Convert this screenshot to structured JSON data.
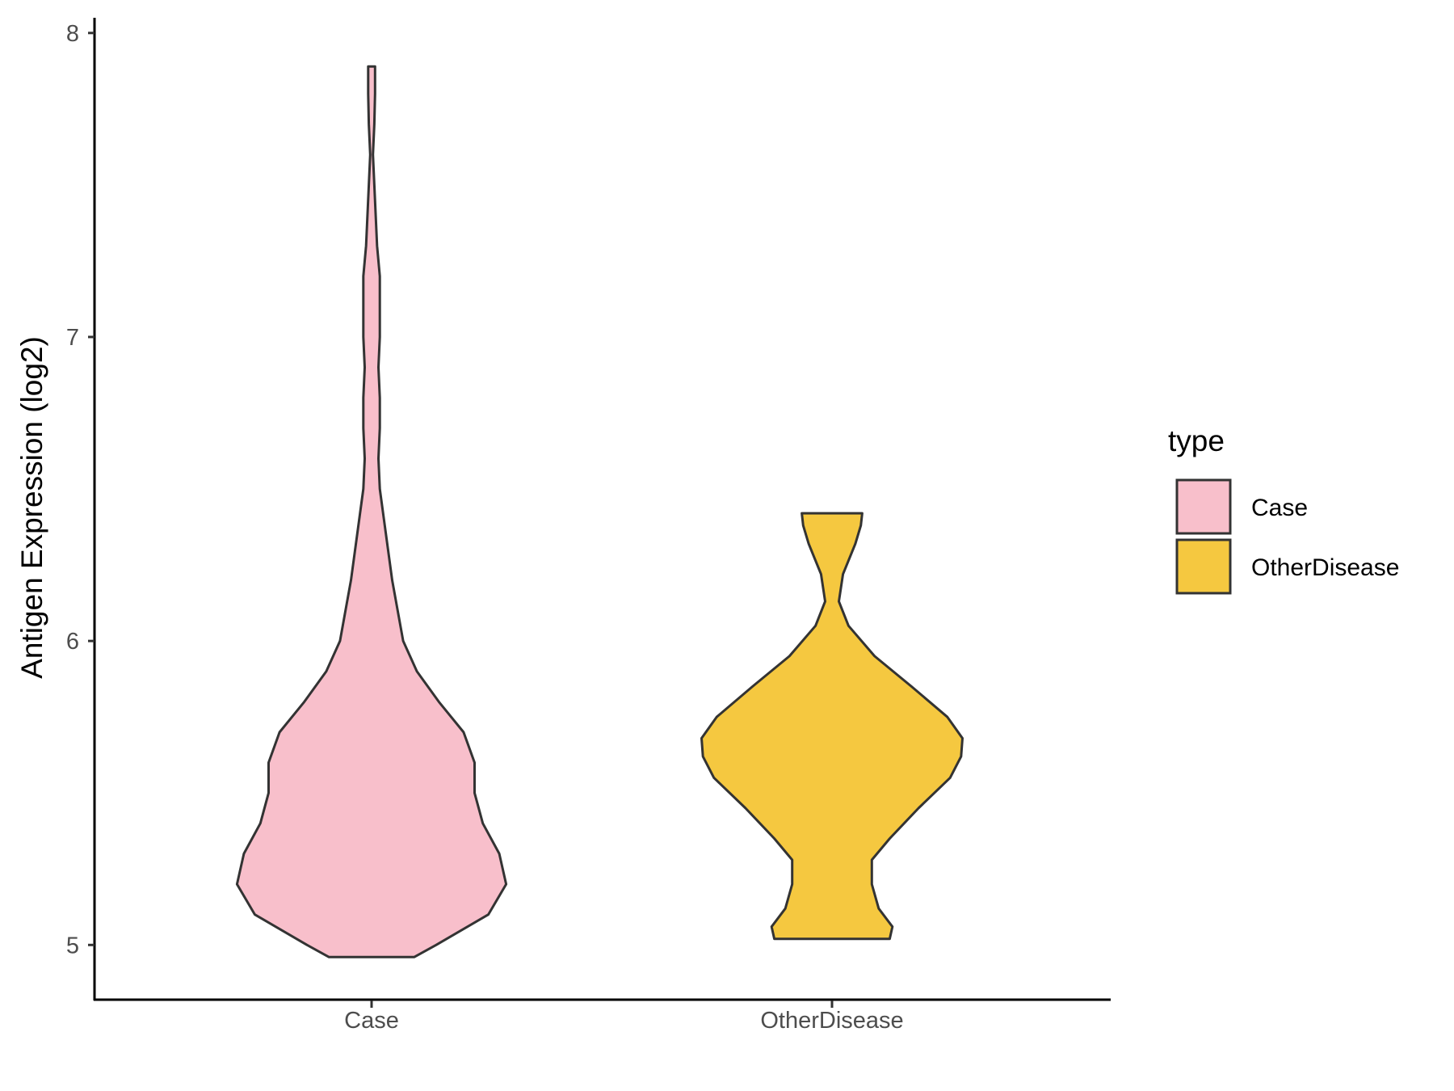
{
  "chart_data": {
    "type": "violin",
    "ylabel": "Antigen Expression (log2)",
    "xlabel": "",
    "ylim": [
      4.82,
      8.05
    ],
    "yticks": [
      5,
      6,
      7,
      8
    ],
    "categories": [
      "Case",
      "OtherDisease"
    ],
    "legend": {
      "title": "type",
      "position": "right"
    },
    "grid": false,
    "series": [
      {
        "name": "Case",
        "color": "#F8BFCB",
        "min": 4.96,
        "max": 7.89,
        "density": [
          [
            4.96,
            0.31
          ],
          [
            5.0,
            0.47
          ],
          [
            5.1,
            0.85
          ],
          [
            5.2,
            0.98
          ],
          [
            5.3,
            0.93
          ],
          [
            5.4,
            0.81
          ],
          [
            5.5,
            0.75
          ],
          [
            5.6,
            0.75
          ],
          [
            5.7,
            0.67
          ],
          [
            5.8,
            0.49
          ],
          [
            5.9,
            0.33
          ],
          [
            6.0,
            0.23
          ],
          [
            6.1,
            0.19
          ],
          [
            6.2,
            0.15
          ],
          [
            6.3,
            0.12
          ],
          [
            6.4,
            0.09
          ],
          [
            6.5,
            0.06
          ],
          [
            6.6,
            0.05
          ],
          [
            6.7,
            0.06
          ],
          [
            6.8,
            0.06
          ],
          [
            6.9,
            0.05
          ],
          [
            7.0,
            0.06
          ],
          [
            7.1,
            0.06
          ],
          [
            7.2,
            0.06
          ],
          [
            7.3,
            0.04
          ],
          [
            7.4,
            0.03
          ],
          [
            7.5,
            0.02
          ],
          [
            7.6,
            0.01
          ],
          [
            7.7,
            0.02
          ],
          [
            7.8,
            0.025
          ],
          [
            7.89,
            0.025
          ]
        ]
      },
      {
        "name": "OtherDisease",
        "color": "#F5C840",
        "min": 5.02,
        "max": 6.42,
        "density": [
          [
            5.02,
            0.42
          ],
          [
            5.06,
            0.44
          ],
          [
            5.12,
            0.34
          ],
          [
            5.2,
            0.29
          ],
          [
            5.28,
            0.29
          ],
          [
            5.35,
            0.42
          ],
          [
            5.45,
            0.63
          ],
          [
            5.55,
            0.86
          ],
          [
            5.62,
            0.94
          ],
          [
            5.68,
            0.95
          ],
          [
            5.75,
            0.84
          ],
          [
            5.85,
            0.58
          ],
          [
            5.95,
            0.31
          ],
          [
            6.05,
            0.12
          ],
          [
            6.13,
            0.05
          ],
          [
            6.22,
            0.08
          ],
          [
            6.32,
            0.17
          ],
          [
            6.38,
            0.21
          ],
          [
            6.42,
            0.22
          ]
        ]
      }
    ]
  }
}
